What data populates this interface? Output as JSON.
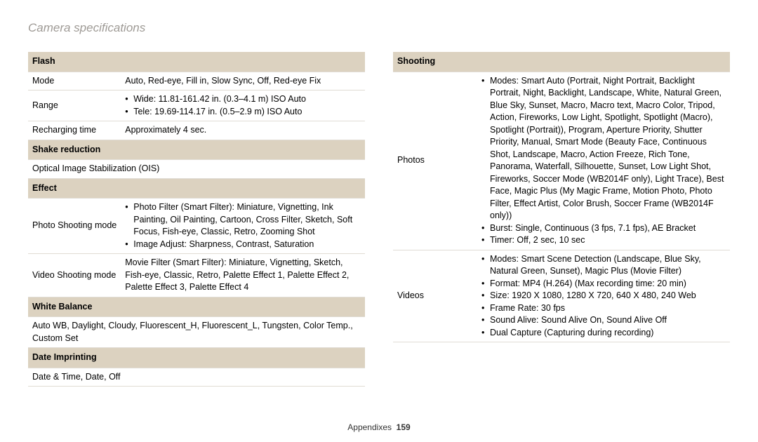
{
  "title": "Camera specifications",
  "footer_section": "Appendixes",
  "footer_page": "159",
  "left": {
    "flash": {
      "header": "Flash",
      "mode_label": "Mode",
      "mode_val": "Auto, Red-eye, Fill in, Slow Sync, Off, Red-eye Fix",
      "range_label": "Range",
      "range_b1": "Wide: 11.81-161.42 in. (0.3–4.1 m) ISO Auto",
      "range_b2": "Tele: 19.69-114.17 in. (0.5–2.9 m) ISO Auto",
      "recharge_label": "Recharging time",
      "recharge_val": "Approximately 4 sec."
    },
    "shake": {
      "header": "Shake reduction",
      "val": "Optical Image Stabilization (OIS)"
    },
    "effect": {
      "header": "Effect",
      "photo_label": "Photo Shooting mode",
      "photo_b1": "Photo Filter (Smart Filter): Miniature, Vignetting, Ink Painting, Oil Painting, Cartoon, Cross Filter, Sketch, Soft Focus, Fish-eye, Classic, Retro, Zooming Shot",
      "photo_b2": "Image Adjust: Sharpness, Contrast, Saturation",
      "video_label": "Video Shooting mode",
      "video_val": "Movie Filter (Smart Filter): Miniature, Vignetting, Sketch, Fish-eye, Classic, Retro, Palette Effect 1, Palette Effect 2, Palette Effect 3, Palette Effect 4"
    },
    "wb": {
      "header": "White Balance",
      "val": "Auto WB, Daylight, Cloudy, Fluorescent_H, Fluorescent_L, Tungsten, Color Temp., Custom Set"
    },
    "date": {
      "header": "Date Imprinting",
      "val": "Date & Time, Date, Off"
    }
  },
  "right": {
    "shooting": {
      "header": "Shooting",
      "photos_label": "Photos",
      "photos_b1": "Modes: Smart Auto (Portrait, Night Portrait, Backlight Portrait, Night, Backlight, Landscape, White, Natural Green, Blue Sky, Sunset, Macro, Macro text, Macro Color, Tripod, Action, Fireworks, Low Light, Spotlight, Spotlight (Macro), Spotlight (Portrait)), Program, Aperture Priority, Shutter Priority, Manual, Smart Mode (Beauty Face, Continuous Shot, Landscape, Macro, Action Freeze, Rich Tone, Panorama, Waterfall, Silhouette, Sunset, Low Light Shot, Fireworks, Soccer Mode (WB2014F only), Light Trace), Best Face, Magic Plus (My Magic Frame, Motion Photo, Photo Filter, Effect Artist, Color Brush, Soccer Frame (WB2014F only))",
      "photos_b2": "Burst: Single, Continuous (3 fps, 7.1 fps), AE Bracket",
      "photos_b3": "Timer: Off, 2 sec, 10 sec",
      "videos_label": "Videos",
      "videos_b1": "Modes: Smart Scene Detection (Landscape, Blue Sky, Natural Green, Sunset), Magic Plus (Movie Filter)",
      "videos_b2": "Format: MP4 (H.264) (Max recording time: 20 min)",
      "videos_b3": "Size: 1920 X 1080, 1280 X 720, 640 X 480, 240 Web",
      "videos_b4": "Frame Rate: 30 fps",
      "videos_b5": "Sound Alive: Sound Alive On, Sound Alive Off",
      "videos_b6": "Dual Capture (Capturing during recording)"
    }
  }
}
